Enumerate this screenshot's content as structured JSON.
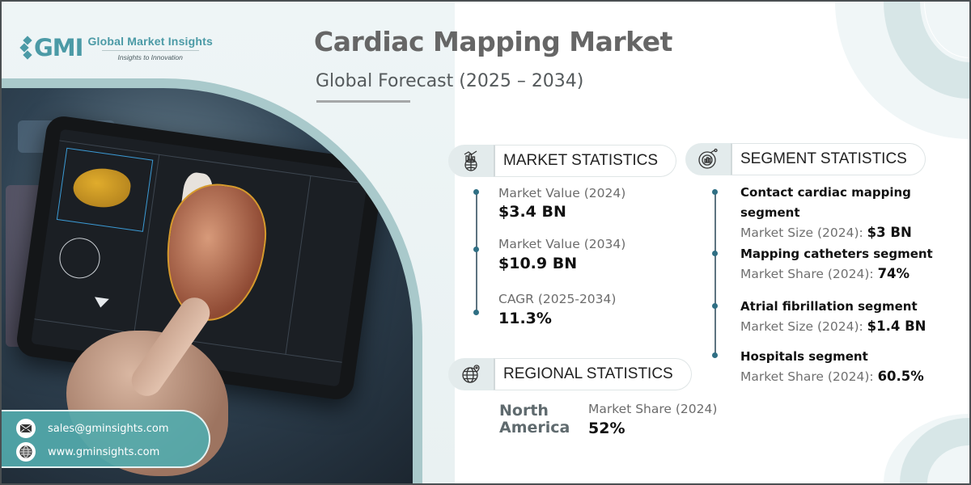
{
  "brand": {
    "logo_mark": "GMI",
    "name": "Global Market Insights",
    "tagline": "Insights to Innovation",
    "accent": "#4b9aa6"
  },
  "header": {
    "title": "Cardiac Mapping Market",
    "subtitle": "Global Forecast (2025 – 2034)"
  },
  "market_statistics": {
    "heading": "MARKET STATISTICS",
    "icon": "globe-chart-icon",
    "items": [
      {
        "label": "Market Value (2024)",
        "value": "$3.4 BN"
      },
      {
        "label": "Market Value (2034)",
        "value": "$10.9 BN"
      },
      {
        "label": "CAGR (2025-2034)",
        "value": "11.3%"
      }
    ]
  },
  "segment_statistics": {
    "heading": "SEGMENT STATISTICS",
    "icon": "segment-pie-icon",
    "items": [
      {
        "title_line1": "Contact cardiac mapping",
        "title_line2": "segment",
        "metric": "Market Size (2024): ",
        "value": "$3 BN"
      },
      {
        "title_line1": "Mapping catheters segment",
        "metric": "Market Share (2024): ",
        "value": "74%"
      },
      {
        "title_line1": "Atrial fibrillation segment",
        "metric": "Market Size (2024): ",
        "value": "$1.4 BN"
      },
      {
        "title_line1": "Hospitals segment",
        "metric": "Market Share (2024): ",
        "value": "60.5%"
      }
    ]
  },
  "regional_statistics": {
    "heading": "REGIONAL STATISTICS",
    "icon": "globe-pin-icon",
    "region_line1": "North",
    "region_line2": "America",
    "metric": "Market Share (2024)",
    "value": "52%"
  },
  "contact": {
    "email": "sales@gminsights.com",
    "website": "www.gminsights.com"
  }
}
